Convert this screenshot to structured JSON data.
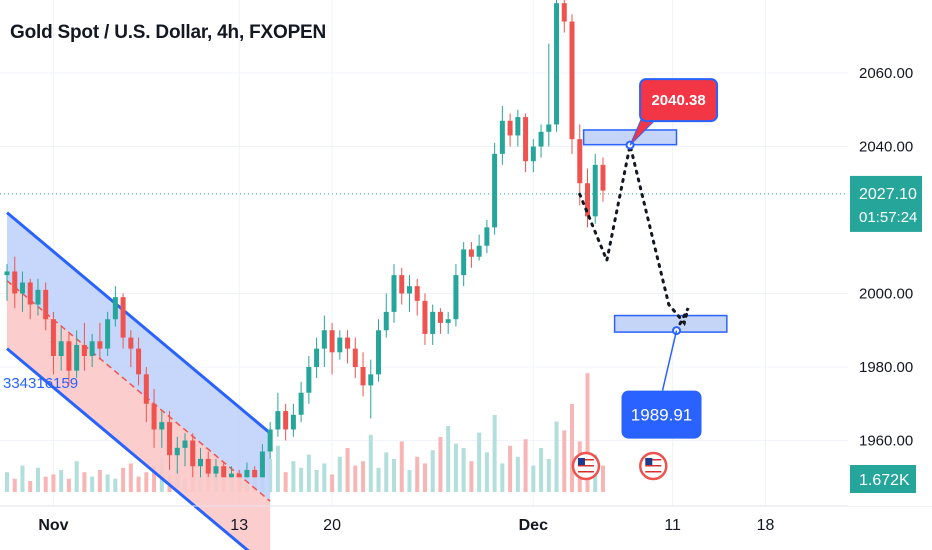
{
  "header": {
    "title": "Gold Spot / U.S. Dollar, 4h, FXOPEN"
  },
  "colors": {
    "up": "#26a69a",
    "down": "#ef5350",
    "up_volume": "#b2dfdb",
    "down_volume": "#f7b6b5",
    "channel_stroke": "#2962ff",
    "channel_fill": "#c1d2fb",
    "channel_lower_fill": "#fbc8c8",
    "zone_fill": "#c5d5f8",
    "price_line": "#26a69a",
    "target_badge": "#2962ff",
    "peak_badge": "#f23645"
  },
  "chart_data": {
    "type": "candlestick",
    "symbol": "Gold Spot / U.S. Dollar",
    "interval": "4h",
    "broker": "FXOPEN",
    "y_axis": {
      "min": 1950,
      "max": 2080,
      "ticks": [
        2060,
        2040,
        2000,
        1980,
        1960
      ]
    },
    "x_axis": {
      "range": [
        0,
        107
      ],
      "ticks": [
        {
          "label": "Nov",
          "x": 6
        },
        {
          "label": "13",
          "x": 30
        },
        {
          "label": "20",
          "x": 42
        },
        {
          "label": "Dec",
          "x": 68
        },
        {
          "label": "11",
          "x": 86
        },
        {
          "label": "18",
          "x": 98
        }
      ]
    },
    "current_price": {
      "value": 2027.1,
      "label": "2027.10",
      "countdown": "01:57:24"
    },
    "volume_label": "1.672K",
    "channel_label": "334316159",
    "annotations": {
      "peak": {
        "label": "2040.38",
        "value": 2040.38
      },
      "target": {
        "label": "1989.91",
        "value": 1989.91
      }
    },
    "projection_path": [
      {
        "x": 74,
        "y": 2027
      },
      {
        "x": 77.5,
        "y": 2009
      },
      {
        "x": 80.5,
        "y": 2040.38
      },
      {
        "x": 85.5,
        "y": 1997
      },
      {
        "x": 87.5,
        "y": 1992
      },
      {
        "x": 88,
        "y": 1996
      },
      {
        "x": 86.5,
        "y": 1989.91
      }
    ],
    "zones": [
      {
        "x0": 74.5,
        "x1": 86.5,
        "low": 2040.5,
        "high": 2044.5
      },
      {
        "x0": 78.5,
        "x1": 93,
        "low": 1989.5,
        "high": 1994
      }
    ],
    "channel": {
      "upper": [
        {
          "x": 0,
          "y": 2022
        },
        {
          "x": 34,
          "y": 1962
        }
      ],
      "lower": [
        {
          "x": 0,
          "y": 1985
        },
        {
          "x": 34,
          "y": 1925
        }
      ],
      "mid": [
        {
          "x": 0,
          "y": 2003.5
        },
        {
          "x": 34,
          "y": 1943.5
        }
      ]
    },
    "event_markers": [
      {
        "x": 74.8
      },
      {
        "x": 83.5
      }
    ],
    "candles": [
      [
        2005,
        2006,
        1998,
        2008
      ],
      [
        2006,
        2000,
        1996,
        2010
      ],
      [
        2000,
        2003,
        1995,
        2006
      ],
      [
        2003,
        1997,
        1993,
        2004
      ],
      [
        1997,
        2001,
        1994,
        2004
      ],
      [
        2001,
        1993,
        1990,
        2003
      ],
      [
        1993,
        1983,
        1978,
        1995
      ],
      [
        1983,
        1987,
        1979,
        1991
      ],
      [
        1987,
        1979,
        1975,
        1989
      ],
      [
        1979,
        1986,
        1977,
        1990
      ],
      [
        1986,
        1983,
        1979,
        1992
      ],
      [
        1983,
        1987,
        1980,
        1989
      ],
      [
        1987,
        1985,
        1982,
        1992
      ],
      [
        1985,
        1993,
        1983,
        1995
      ],
      [
        1993,
        1999,
        1991,
        2002
      ],
      [
        1999,
        1988,
        1985,
        2000
      ],
      [
        1988,
        1985,
        1980,
        1990
      ],
      [
        1985,
        1978,
        1975,
        1988
      ],
      [
        1978,
        1970,
        1965,
        1980
      ],
      [
        1970,
        1963,
        1958,
        1974
      ],
      [
        1963,
        1965,
        1958,
        1968
      ],
      [
        1965,
        1956,
        1952,
        1968
      ],
      [
        1956,
        1958,
        1951,
        1961
      ],
      [
        1958,
        1960,
        1953,
        1962
      ],
      [
        1960,
        1953,
        1950,
        1962
      ],
      [
        1953,
        1955,
        1950,
        1958
      ],
      [
        1955,
        1951,
        1950,
        1957
      ],
      [
        1951,
        1953,
        1950,
        1955
      ],
      [
        1953,
        1950,
        1950,
        1954
      ],
      [
        1950,
        1951,
        1950,
        1953
      ],
      [
        1951,
        1950,
        1950,
        1952
      ],
      [
        1950,
        1952,
        1950,
        1954
      ],
      [
        1952,
        1950,
        1950,
        1953
      ],
      [
        1950,
        1957,
        1950,
        1959
      ],
      [
        1957,
        1963,
        1955,
        1965
      ],
      [
        1963,
        1968,
        1961,
        1973
      ],
      [
        1968,
        1963,
        1960,
        1970
      ],
      [
        1963,
        1967,
        1961,
        1970
      ],
      [
        1967,
        1973,
        1965,
        1976
      ],
      [
        1973,
        1980,
        1970,
        1983
      ],
      [
        1980,
        1985,
        1977,
        1988
      ],
      [
        1985,
        1990,
        1980,
        1994
      ],
      [
        1990,
        1984,
        1978,
        1992
      ],
      [
        1984,
        1988,
        1982,
        1990
      ],
      [
        1988,
        1985,
        1981,
        1990
      ],
      [
        1985,
        1980,
        1977,
        1988
      ],
      [
        1980,
        1975,
        1972,
        1984
      ],
      [
        1975,
        1978,
        1966,
        1982
      ],
      [
        1978,
        1990,
        1976,
        1993
      ],
      [
        1990,
        1995,
        1988,
        2000
      ],
      [
        1995,
        2005,
        1992,
        2008
      ],
      [
        2005,
        2000,
        1997,
        2007
      ],
      [
        2000,
        2002,
        1995,
        2005
      ],
      [
        2002,
        1998,
        1994,
        2004
      ],
      [
        1998,
        1989,
        1986,
        2000
      ],
      [
        1989,
        1995,
        1986,
        1997
      ],
      [
        1995,
        1992,
        1989,
        1996
      ],
      [
        1992,
        1993,
        1989,
        1995
      ],
      [
        1993,
        2005,
        1991,
        2008
      ],
      [
        2005,
        2012,
        2002,
        2014
      ],
      [
        2012,
        2010,
        2007,
        2014
      ],
      [
        2010,
        2013,
        2009,
        2016
      ],
      [
        2013,
        2018,
        2011,
        2020
      ],
      [
        2018,
        2038,
        2016,
        2041
      ],
      [
        2038,
        2047,
        2035,
        2051
      ],
      [
        2047,
        2043,
        2040,
        2049
      ],
      [
        2043,
        2048,
        2040,
        2050
      ],
      [
        2048,
        2036,
        2033,
        2049
      ],
      [
        2036,
        2040,
        2033,
        2042
      ],
      [
        2040,
        2044,
        2037,
        2046
      ],
      [
        2044,
        2046,
        2040,
        2068
      ],
      [
        2046,
        2079,
        2044,
        2081
      ],
      [
        2079,
        2074,
        2071,
        2081
      ],
      [
        2074,
        2042,
        2038,
        2076
      ],
      [
        2042,
        2030,
        2024,
        2046
      ],
      [
        2030,
        2021,
        2018,
        2034
      ],
      [
        2021,
        2035,
        2019,
        2038
      ],
      [
        2035,
        2028,
        2025,
        2037
      ]
    ],
    "volumes": [
      0.9,
      0.6,
      1.2,
      0.5,
      1.1,
      0.7,
      0.8,
      1.0,
      0.6,
      1.4,
      0.9,
      0.7,
      1.0,
      0.8,
      0.6,
      1.1,
      1.3,
      0.7,
      0.9,
      1.2,
      1.6,
      0.8,
      1.0,
      0.6,
      1.4,
      0.7,
      0.9,
      1.1,
      1.3,
      0.8,
      1.0,
      0.7,
      0.9,
      1.2,
      1.5,
      2.1,
      0.9,
      1.4,
      1.1,
      1.7,
      1.0,
      1.3,
      0.8,
      1.6,
      2.0,
      1.2,
      1.4,
      2.6,
      1.1,
      1.8,
      1.5,
      2.3,
      1.0,
      1.6,
      1.3,
      1.9,
      2.5,
      3.0,
      2.2,
      2.0,
      1.4,
      2.7,
      1.8,
      3.5,
      1.3,
      2.1,
      1.6,
      2.4,
      1.2,
      2.0,
      1.5,
      3.2,
      2.8,
      4.0,
      2.3,
      5.4,
      1.7,
      1.2
    ]
  }
}
